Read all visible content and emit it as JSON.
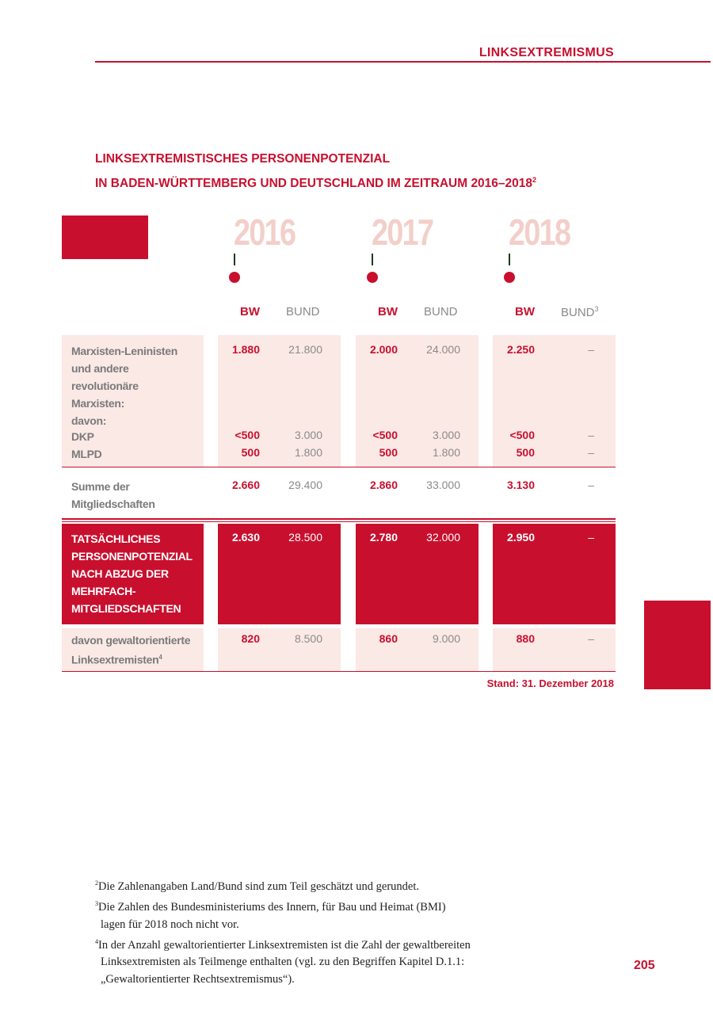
{
  "header": {
    "section": "LINKSEXTREMISMUS"
  },
  "title": {
    "line1": "LINKSEXTREMISTISCHES PERSONENPOTENZIAL",
    "line2": "IN BADEN-WÜRTTEMBERG UND DEUTSCHLAND IM ZEITRAUM 2016–2018",
    "sup": "2"
  },
  "years": [
    "2016",
    "2017",
    "2018"
  ],
  "col_headers": {
    "bw": "BW",
    "bund": "BUND",
    "bund_sup_2018": "3"
  },
  "rows": {
    "marx": {
      "label": [
        "Marxisten-Leninisten",
        "und andere",
        "revolutionäre",
        "Marxisten:",
        "davon:"
      ],
      "values": [
        [
          "1.880",
          "21.800"
        ],
        [
          "2.000",
          "24.000"
        ],
        [
          "2.250",
          "–"
        ]
      ]
    },
    "dkp": {
      "label": "DKP",
      "values": [
        [
          "<500",
          "3.000"
        ],
        [
          "<500",
          "3.000"
        ],
        [
          "<500",
          "–"
        ]
      ]
    },
    "mlpd": {
      "label": "MLPD",
      "values": [
        [
          "500",
          "1.800"
        ],
        [
          "500",
          "1.800"
        ],
        [
          "500",
          "–"
        ]
      ]
    },
    "summe": {
      "label": [
        "Summe der",
        "Mitgliedschaften"
      ],
      "values": [
        [
          "2.660",
          "29.400"
        ],
        [
          "2.860",
          "33.000"
        ],
        [
          "3.130",
          "–"
        ]
      ]
    },
    "tats": {
      "label": [
        "TATSÄCHLICHES",
        "PERSONENPOTENZIAL",
        "NACH ABZUG DER",
        "MEHRFACH-",
        "MITGLIEDSCHAFTEN"
      ],
      "values": [
        [
          "2.630",
          "28.500"
        ],
        [
          "2.780",
          "32.000"
        ],
        [
          "2.950",
          "–"
        ]
      ]
    },
    "gewalt": {
      "label": [
        "davon gewaltorientierte",
        "Linksextremisten"
      ],
      "sup": "4",
      "values": [
        [
          "820",
          "8.500"
        ],
        [
          "860",
          "9.000"
        ],
        [
          "880",
          "–"
        ]
      ]
    }
  },
  "stand": "Stand: 31. Dezember 2018",
  "footnotes": [
    {
      "num": "2",
      "lines": [
        "Die Zahlenangaben Land/Bund sind zum Teil geschätzt und gerundet."
      ]
    },
    {
      "num": "3",
      "lines": [
        "Die Zahlen des Bundesministeriums des Innern, für Bau und Heimat (BMI)",
        "lagen für 2018 noch nicht vor."
      ]
    },
    {
      "num": "4",
      "lines": [
        "In der Anzahl gewaltorientierter Linksextremisten ist die Zahl der gewaltbereiten",
        "Linksextremisten als Teilmenge enthalten (vgl. zu den Begriffen Kapitel D.1.1:",
        "„Gewaltorientierter Rechtsextremismus“)."
      ]
    }
  ],
  "page_number": "205"
}
